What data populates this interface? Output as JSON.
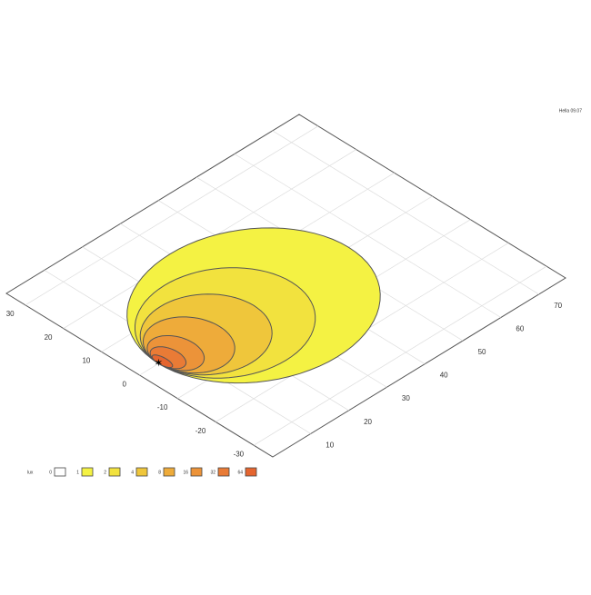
{
  "chart_data": {
    "type": "isolux",
    "title": "Hella 09.07",
    "legend_title": "lux",
    "levels": [
      0,
      1,
      2,
      4,
      8,
      16,
      32,
      64
    ],
    "level_colors": [
      "#ffffff",
      "#f4f243",
      "#f2e23e",
      "#efc63b",
      "#eeab3a",
      "#ec9339",
      "#e97b36",
      "#e5652f"
    ],
    "contours": [
      {
        "level": 1,
        "reach": 55,
        "half_width": 22
      },
      {
        "level": 2,
        "reach": 40,
        "half_width": 16
      },
      {
        "level": 4,
        "reach": 30,
        "half_width": 12
      },
      {
        "level": 8,
        "reach": 21,
        "half_width": 9
      },
      {
        "level": 16,
        "reach": 14,
        "half_width": 6
      },
      {
        "level": 32,
        "reach": 10,
        "half_width": 4
      },
      {
        "level": 64,
        "reach": 7,
        "half_width": 2.5
      }
    ],
    "source": [
      5,
      0
    ],
    "xlim": [
      0,
      77
    ],
    "ylim": [
      -35,
      35
    ],
    "xticks": [
      10,
      20,
      30,
      40,
      50,
      60,
      70
    ],
    "yticks": [
      -30,
      -20,
      -10,
      0,
      10,
      20,
      30
    ],
    "grid": true
  }
}
